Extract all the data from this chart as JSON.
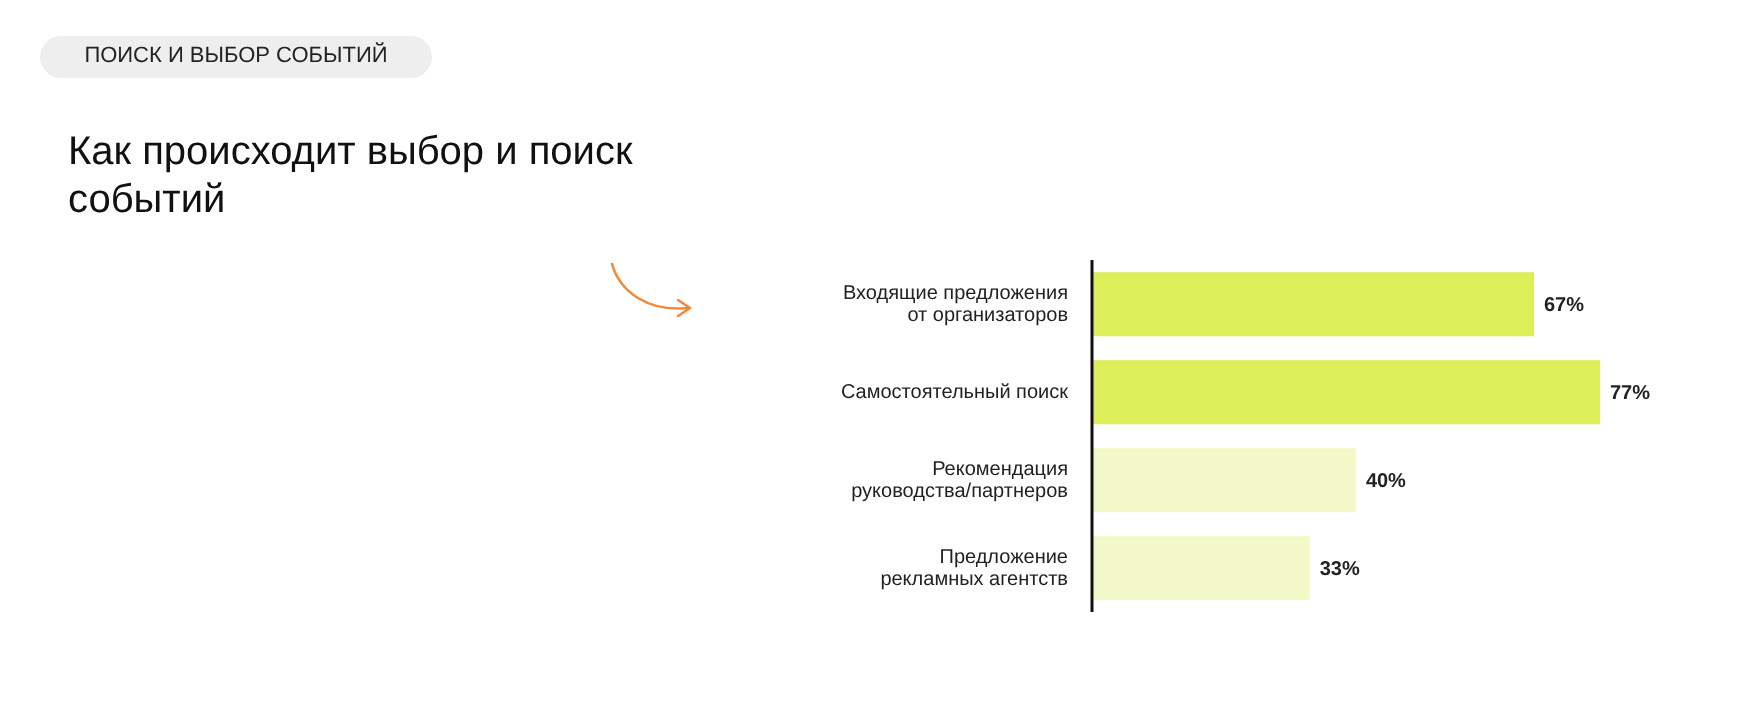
{
  "chart_data": {
    "type": "bar",
    "orientation": "horizontal",
    "subtitle": "ПОИСК И ВЫБОР СОБЫТИЙ",
    "title": "Как происходит выбор и поиск событий",
    "categories": [
      "Входящие предложения\nот организаторов",
      "Самостоятельный поиск",
      "Рекомендация\nруководства/партнеров",
      "Предложение\nрекламных агентств"
    ],
    "values": [
      67,
      77,
      40,
      33
    ],
    "colors": [
      "#dcee58",
      "#dcee58",
      "#f3f8c9",
      "#f3f8c9"
    ],
    "value_labels": [
      "67%",
      "77%",
      "40%",
      "33%"
    ]
  }
}
